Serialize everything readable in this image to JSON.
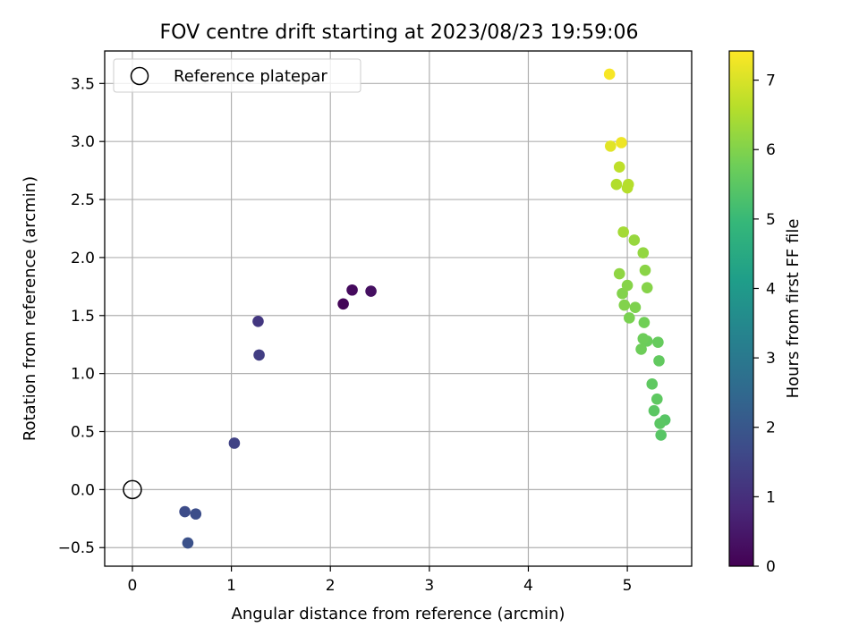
{
  "chart_data": {
    "type": "scatter",
    "title": "FOV centre drift starting at 2023/08/23 19:59:06",
    "xlabel": "Angular distance from reference (arcmin)",
    "ylabel": "Rotation from reference (arcmin)",
    "xlim": [
      -0.28,
      5.65
    ],
    "ylim": [
      -0.66,
      3.78
    ],
    "xticks": [
      "0",
      "1",
      "2",
      "3",
      "4",
      "5"
    ],
    "yticks": [
      "−0.5",
      "0.0",
      "0.5",
      "1.0",
      "1.5",
      "2.0",
      "2.5",
      "3.0",
      "3.5"
    ],
    "grid": true,
    "legend": {
      "placement": "top-left",
      "entries": [
        {
          "label": "Reference platepar",
          "marker": "open-circle"
        }
      ]
    },
    "reference_point": {
      "x": 0.0,
      "y": 0.0
    },
    "colorbar": {
      "label": "Hours from first FF file",
      "colormap": "viridis",
      "range": [
        0,
        7.42
      ],
      "ticks": [
        "0",
        "1",
        "2",
        "3",
        "4",
        "5",
        "6",
        "7"
      ]
    },
    "points": [
      {
        "x": 2.13,
        "y": 1.6,
        "c": 0.1
      },
      {
        "x": 2.22,
        "y": 1.72,
        "c": 0.2
      },
      {
        "x": 2.41,
        "y": 1.71,
        "c": 0.3
      },
      {
        "x": 1.27,
        "y": 1.45,
        "c": 1.2
      },
      {
        "x": 1.28,
        "y": 1.16,
        "c": 1.35
      },
      {
        "x": 1.03,
        "y": 0.4,
        "c": 1.45
      },
      {
        "x": 0.53,
        "y": -0.19,
        "c": 1.7
      },
      {
        "x": 0.64,
        "y": -0.21,
        "c": 1.75
      },
      {
        "x": 0.56,
        "y": -0.46,
        "c": 1.85
      },
      {
        "x": 5.34,
        "y": 0.47,
        "c": 5.45
      },
      {
        "x": 5.38,
        "y": 0.6,
        "c": 5.45
      },
      {
        "x": 5.33,
        "y": 0.57,
        "c": 5.5
      },
      {
        "x": 5.27,
        "y": 0.68,
        "c": 5.5
      },
      {
        "x": 5.3,
        "y": 0.78,
        "c": 5.55
      },
      {
        "x": 5.25,
        "y": 0.91,
        "c": 5.55
      },
      {
        "x": 5.32,
        "y": 1.11,
        "c": 5.6
      },
      {
        "x": 5.31,
        "y": 1.27,
        "c": 5.65
      },
      {
        "x": 5.2,
        "y": 1.28,
        "c": 5.7
      },
      {
        "x": 5.16,
        "y": 1.3,
        "c": 5.75
      },
      {
        "x": 5.14,
        "y": 1.21,
        "c": 5.75
      },
      {
        "x": 5.17,
        "y": 1.44,
        "c": 5.8
      },
      {
        "x": 5.02,
        "y": 1.48,
        "c": 5.9
      },
      {
        "x": 5.08,
        "y": 1.57,
        "c": 5.95
      },
      {
        "x": 4.97,
        "y": 1.59,
        "c": 6.0
      },
      {
        "x": 4.95,
        "y": 1.69,
        "c": 6.0
      },
      {
        "x": 5.0,
        "y": 1.76,
        "c": 6.05
      },
      {
        "x": 5.2,
        "y": 1.74,
        "c": 6.05
      },
      {
        "x": 4.92,
        "y": 1.86,
        "c": 6.15
      },
      {
        "x": 5.18,
        "y": 1.89,
        "c": 6.1
      },
      {
        "x": 5.16,
        "y": 2.04,
        "c": 6.2
      },
      {
        "x": 5.07,
        "y": 2.15,
        "c": 6.25
      },
      {
        "x": 4.96,
        "y": 2.22,
        "c": 6.4
      },
      {
        "x": 4.89,
        "y": 2.63,
        "c": 6.55
      },
      {
        "x": 5.0,
        "y": 2.6,
        "c": 6.6
      },
      {
        "x": 5.01,
        "y": 2.63,
        "c": 6.6
      },
      {
        "x": 4.92,
        "y": 2.78,
        "c": 6.7
      },
      {
        "x": 4.83,
        "y": 2.96,
        "c": 7.1
      },
      {
        "x": 4.94,
        "y": 2.99,
        "c": 7.25
      },
      {
        "x": 4.82,
        "y": 3.58,
        "c": 7.35
      }
    ]
  }
}
